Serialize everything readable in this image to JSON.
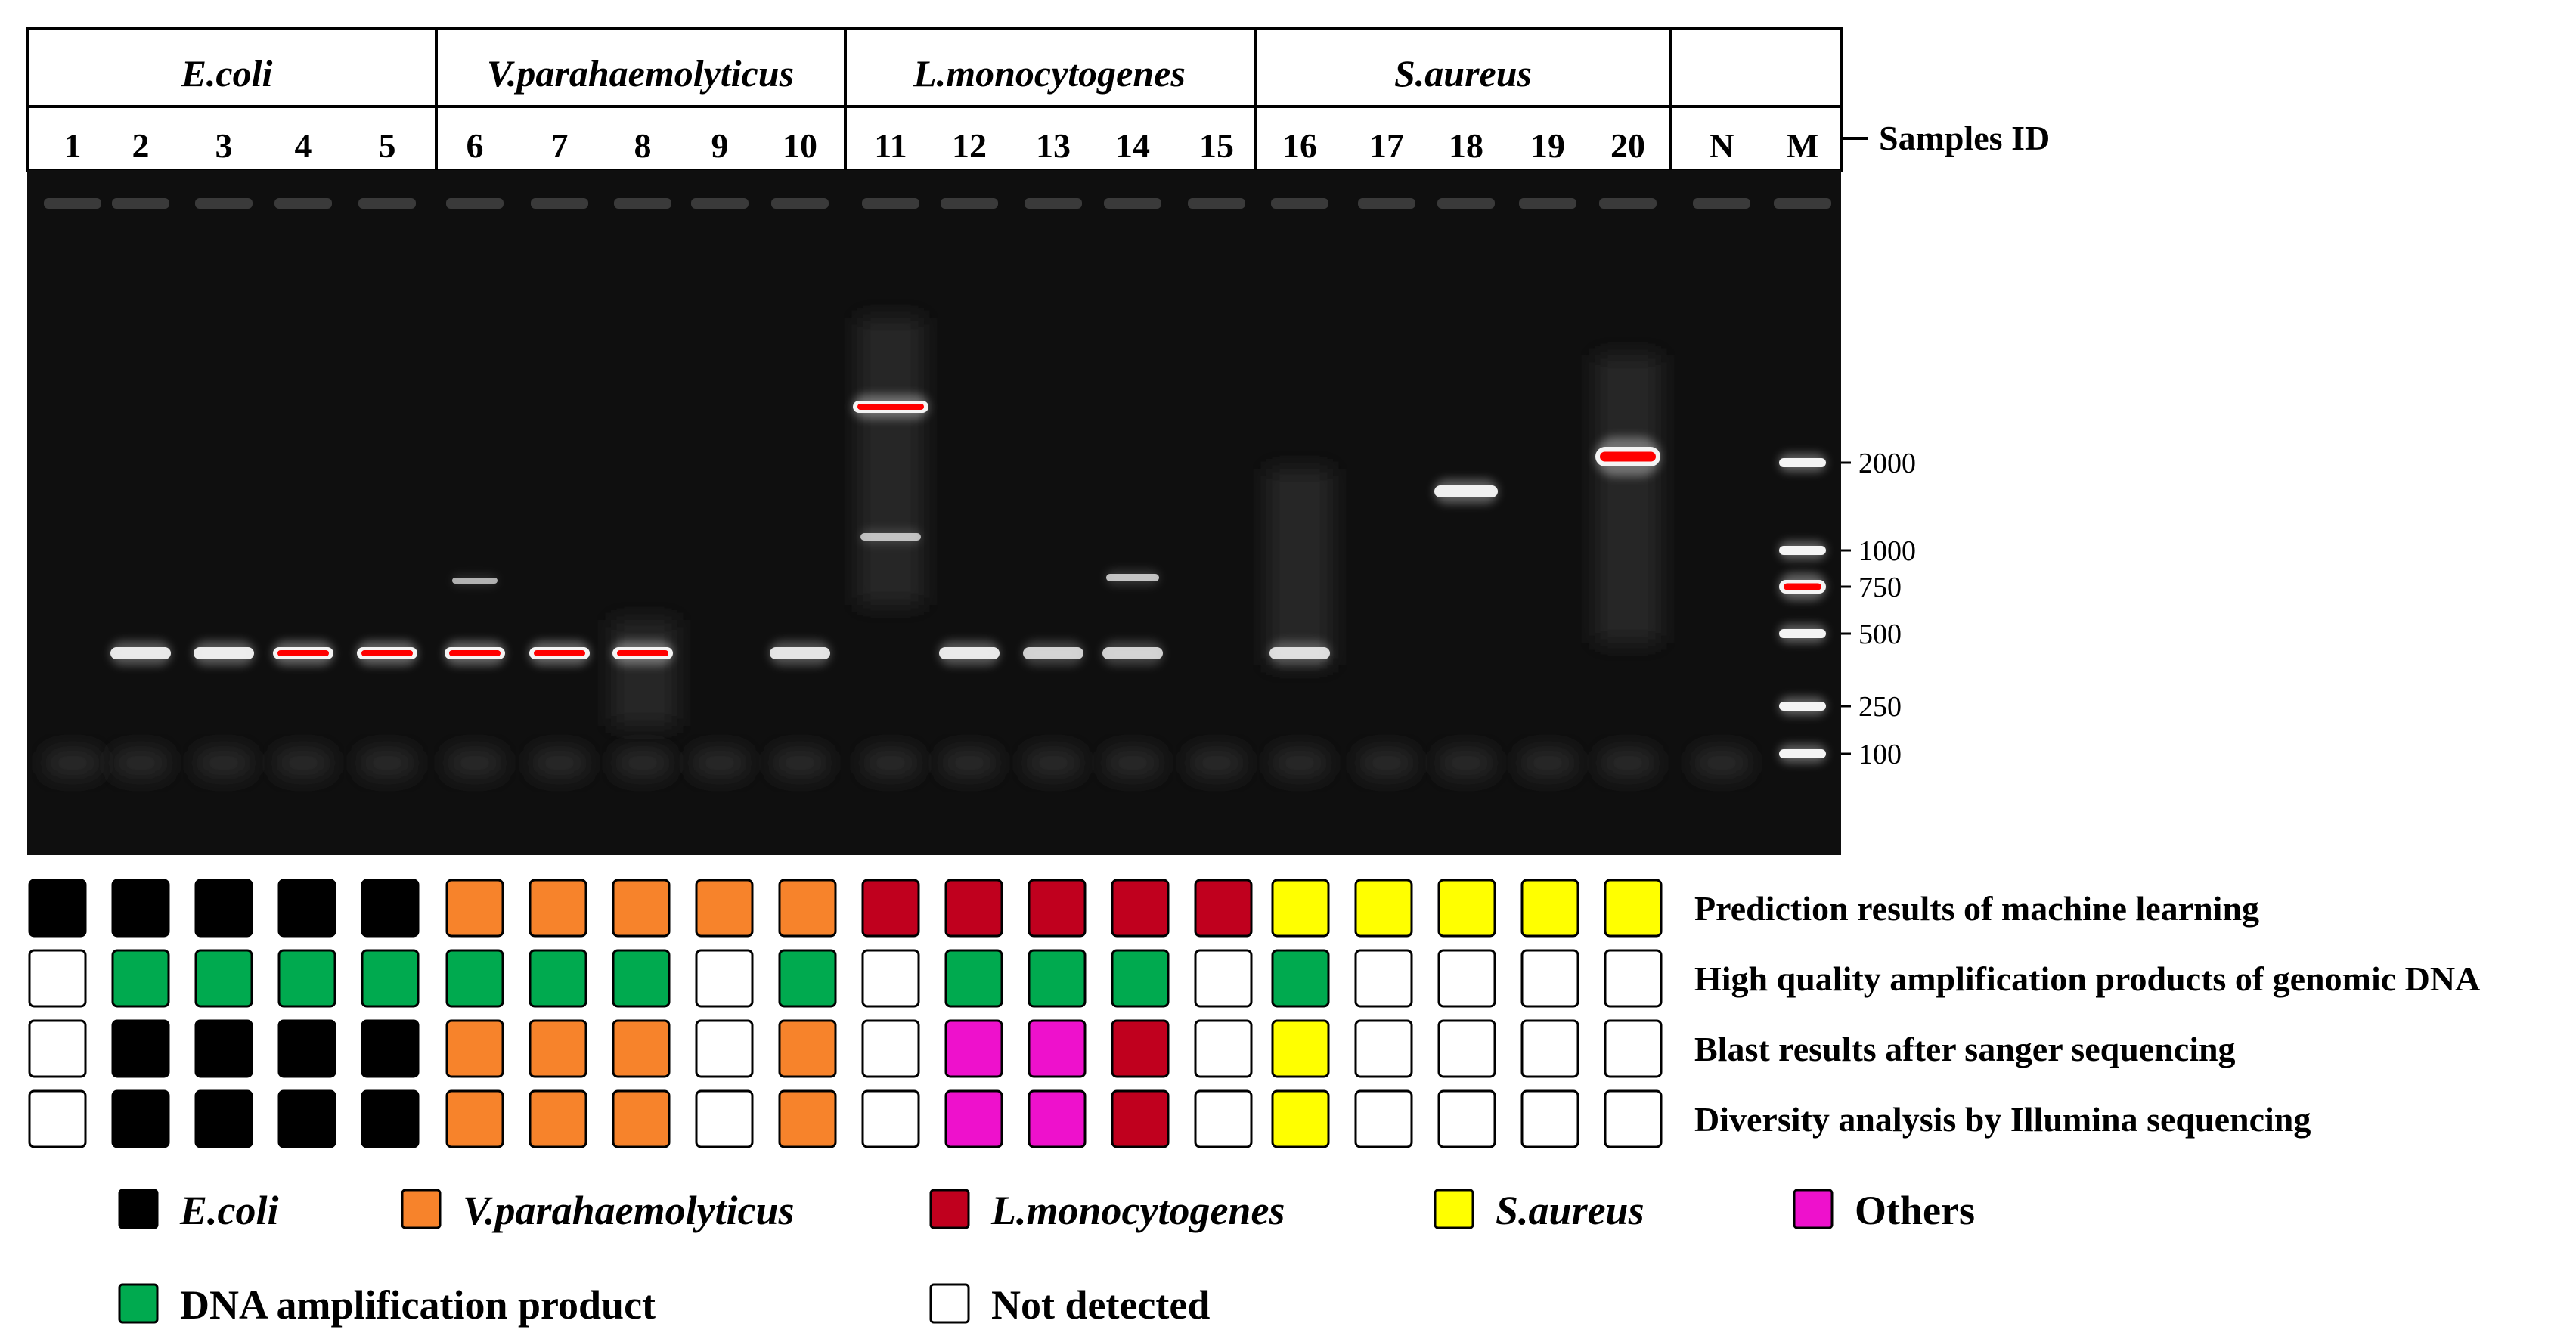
{
  "header": {
    "groups": [
      {
        "label": "E.coli",
        "italic": true
      },
      {
        "label": "V.parahaemolyticus",
        "italic": true
      },
      {
        "label": "L.monocytogenes",
        "italic": true
      },
      {
        "label": "S.aureus",
        "italic": true
      },
      {
        "label": "",
        "italic": false
      }
    ],
    "lanes": [
      "1",
      "2",
      "3",
      "4",
      "5",
      "6",
      "7",
      "8",
      "9",
      "10",
      "11",
      "12",
      "13",
      "14",
      "15",
      "16",
      "17",
      "18",
      "19",
      "20",
      "N",
      "M"
    ],
    "samples_id_label": "Samples ID"
  },
  "gel": {
    "ladder_sizes": [
      "2000",
      "1000",
      "750",
      "500",
      "250",
      "100"
    ]
  },
  "results": {
    "rows": [
      {
        "label": "Prediction results of machine learning",
        "cells": [
          "ecoli",
          "ecoli",
          "ecoli",
          "ecoli",
          "ecoli",
          "vp",
          "vp",
          "vp",
          "vp",
          "vp",
          "lm",
          "lm",
          "lm",
          "lm",
          "lm",
          "sa",
          "sa",
          "sa",
          "sa",
          "sa"
        ]
      },
      {
        "label": "High quality amplification products of genomic DNA",
        "cells": [
          "none",
          "dna",
          "dna",
          "dna",
          "dna",
          "dna",
          "dna",
          "dna",
          "none",
          "dna",
          "none",
          "dna",
          "dna",
          "dna",
          "none",
          "dna",
          "none",
          "none",
          "none",
          "none"
        ]
      },
      {
        "label": "Blast results after sanger sequencing",
        "cells": [
          "none",
          "ecoli",
          "ecoli",
          "ecoli",
          "ecoli",
          "vp",
          "vp",
          "vp",
          "none",
          "vp",
          "none",
          "others",
          "others",
          "lm",
          "none",
          "sa",
          "none",
          "none",
          "none",
          "none"
        ]
      },
      {
        "label": "Diversity analysis by Illumina sequencing",
        "cells": [
          "none",
          "ecoli",
          "ecoli",
          "ecoli",
          "ecoli",
          "vp",
          "vp",
          "vp",
          "none",
          "vp",
          "none",
          "others",
          "others",
          "lm",
          "none",
          "sa",
          "none",
          "none",
          "none",
          "none"
        ]
      }
    ]
  },
  "colors": {
    "ecoli": "#000000",
    "vp": "#f7832b",
    "lm": "#c0001e",
    "sa": "#ffff00",
    "others": "#ee11cc",
    "dna": "#00aa4f",
    "none": "#ffffff"
  },
  "legend": {
    "items": [
      {
        "key": "ecoli",
        "label": "E.coli",
        "italic": true
      },
      {
        "key": "vp",
        "label": "V.parahaemolyticus",
        "italic": true
      },
      {
        "key": "lm",
        "label": "L.monocytogenes",
        "italic": true
      },
      {
        "key": "sa",
        "label": "S.aureus",
        "italic": true
      },
      {
        "key": "others",
        "label": "Others",
        "italic": false
      },
      {
        "key": "dna",
        "label": "DNA amplification product",
        "italic": false
      },
      {
        "key": "none",
        "label": "Not detected",
        "italic": false
      }
    ]
  }
}
